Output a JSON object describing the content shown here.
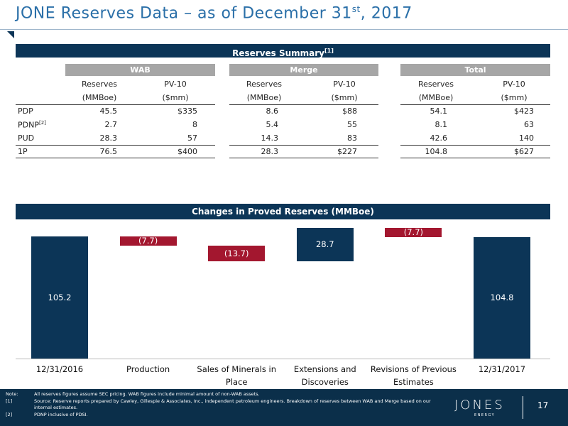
{
  "header": {
    "title": "JONE Reserves Data – as of December 31",
    "title_sup": "st",
    "title_end": ", 2017"
  },
  "table": {
    "title": "Reserves Summary",
    "title_ref": "[1]",
    "groups": [
      "WAB",
      "Merge",
      "Total"
    ],
    "columns": [
      [
        "Reserves",
        "(MMBoe)"
      ],
      [
        "PV-10",
        "($mm)"
      ]
    ],
    "rows": [
      {
        "label": "PDP",
        "cells": [
          "45.5",
          "$335",
          "8.6",
          "$88",
          "54.1",
          "$423"
        ]
      },
      {
        "label": "PDNP",
        "ref": "[2]",
        "cells": [
          "2.7",
          "8",
          "5.4",
          "55",
          "8.1",
          "63"
        ]
      },
      {
        "label": "PUD",
        "cells": [
          "28.3",
          "57",
          "14.3",
          "83",
          "42.6",
          "140"
        ]
      },
      {
        "label": "1P",
        "cells": [
          "76.5",
          "$400",
          "28.3",
          "$227",
          "104.8",
          "$627"
        ]
      }
    ]
  },
  "chart_data": {
    "type": "waterfall",
    "title": "Changes in Proved Reserves (MMBoe)",
    "categories": [
      "12/31/2016",
      "Production",
      "Sales of Minerals in Place",
      "Extensions and Discoveries",
      "Revisions of Previous Estimates",
      "12/31/2017"
    ],
    "values": [
      105.2,
      -7.7,
      -13.7,
      28.7,
      -7.7,
      104.8
    ],
    "value_labels": [
      "105.2",
      "(7.7)",
      "(13.7)",
      "28.7",
      "(7.7)",
      "104.8"
    ],
    "colors": {
      "total": "#0c3557",
      "increase": "#0c3557",
      "decrease": "#a3172f"
    }
  },
  "footnotes": [
    {
      "marker": "Note:",
      "text": "All reserves figures assume SEC pricing.  WAB figures include minimal amount of non-WAB assets."
    },
    {
      "marker": "[1]",
      "text": "Source: Reserve reports prepared by Cawley, Gillespie & Associates, Inc., independent petroleum engineers. Breakdown of reserves between WAB and Merge based on our internal estimates."
    },
    {
      "marker": "[2]",
      "text": "PDNP inclusive of PDSI."
    }
  ],
  "logo": {
    "name": "JONES",
    "tagline": "ENERGY"
  },
  "page_number": "17"
}
